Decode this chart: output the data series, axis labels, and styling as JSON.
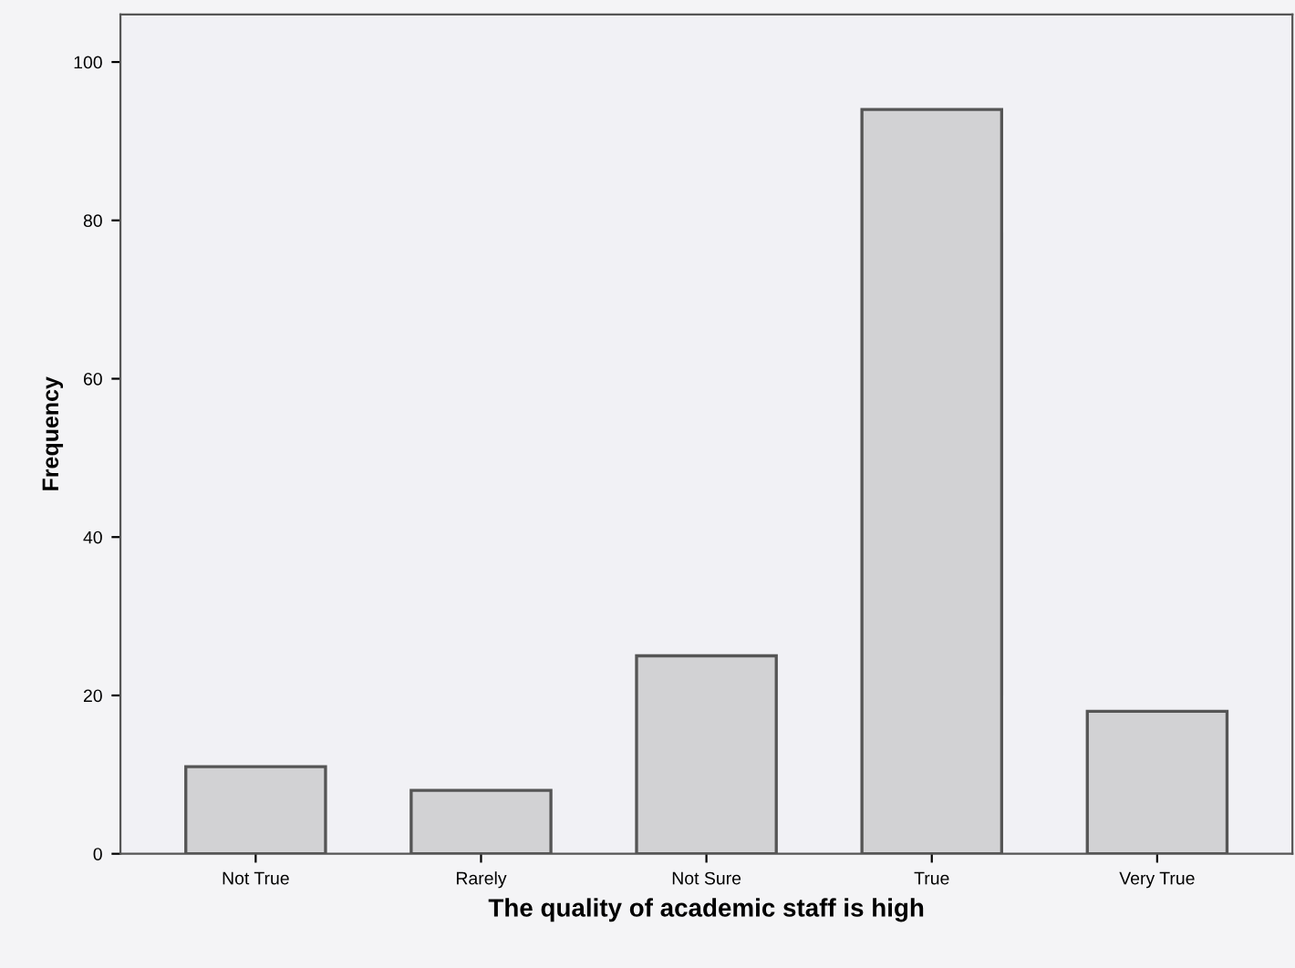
{
  "chart_data": {
    "type": "bar",
    "xlabel": "The quality of academic staff is high",
    "ylabel": "Frequency",
    "categories": [
      "Not True",
      "Rarely",
      "Not Sure",
      "True",
      "Very True"
    ],
    "values": [
      11,
      8,
      25,
      94,
      18
    ],
    "color": "#d2d2d4",
    "ylim": [
      0,
      106
    ],
    "yticks": [
      0,
      20,
      40,
      60,
      80,
      100
    ],
    "grid": false
  }
}
